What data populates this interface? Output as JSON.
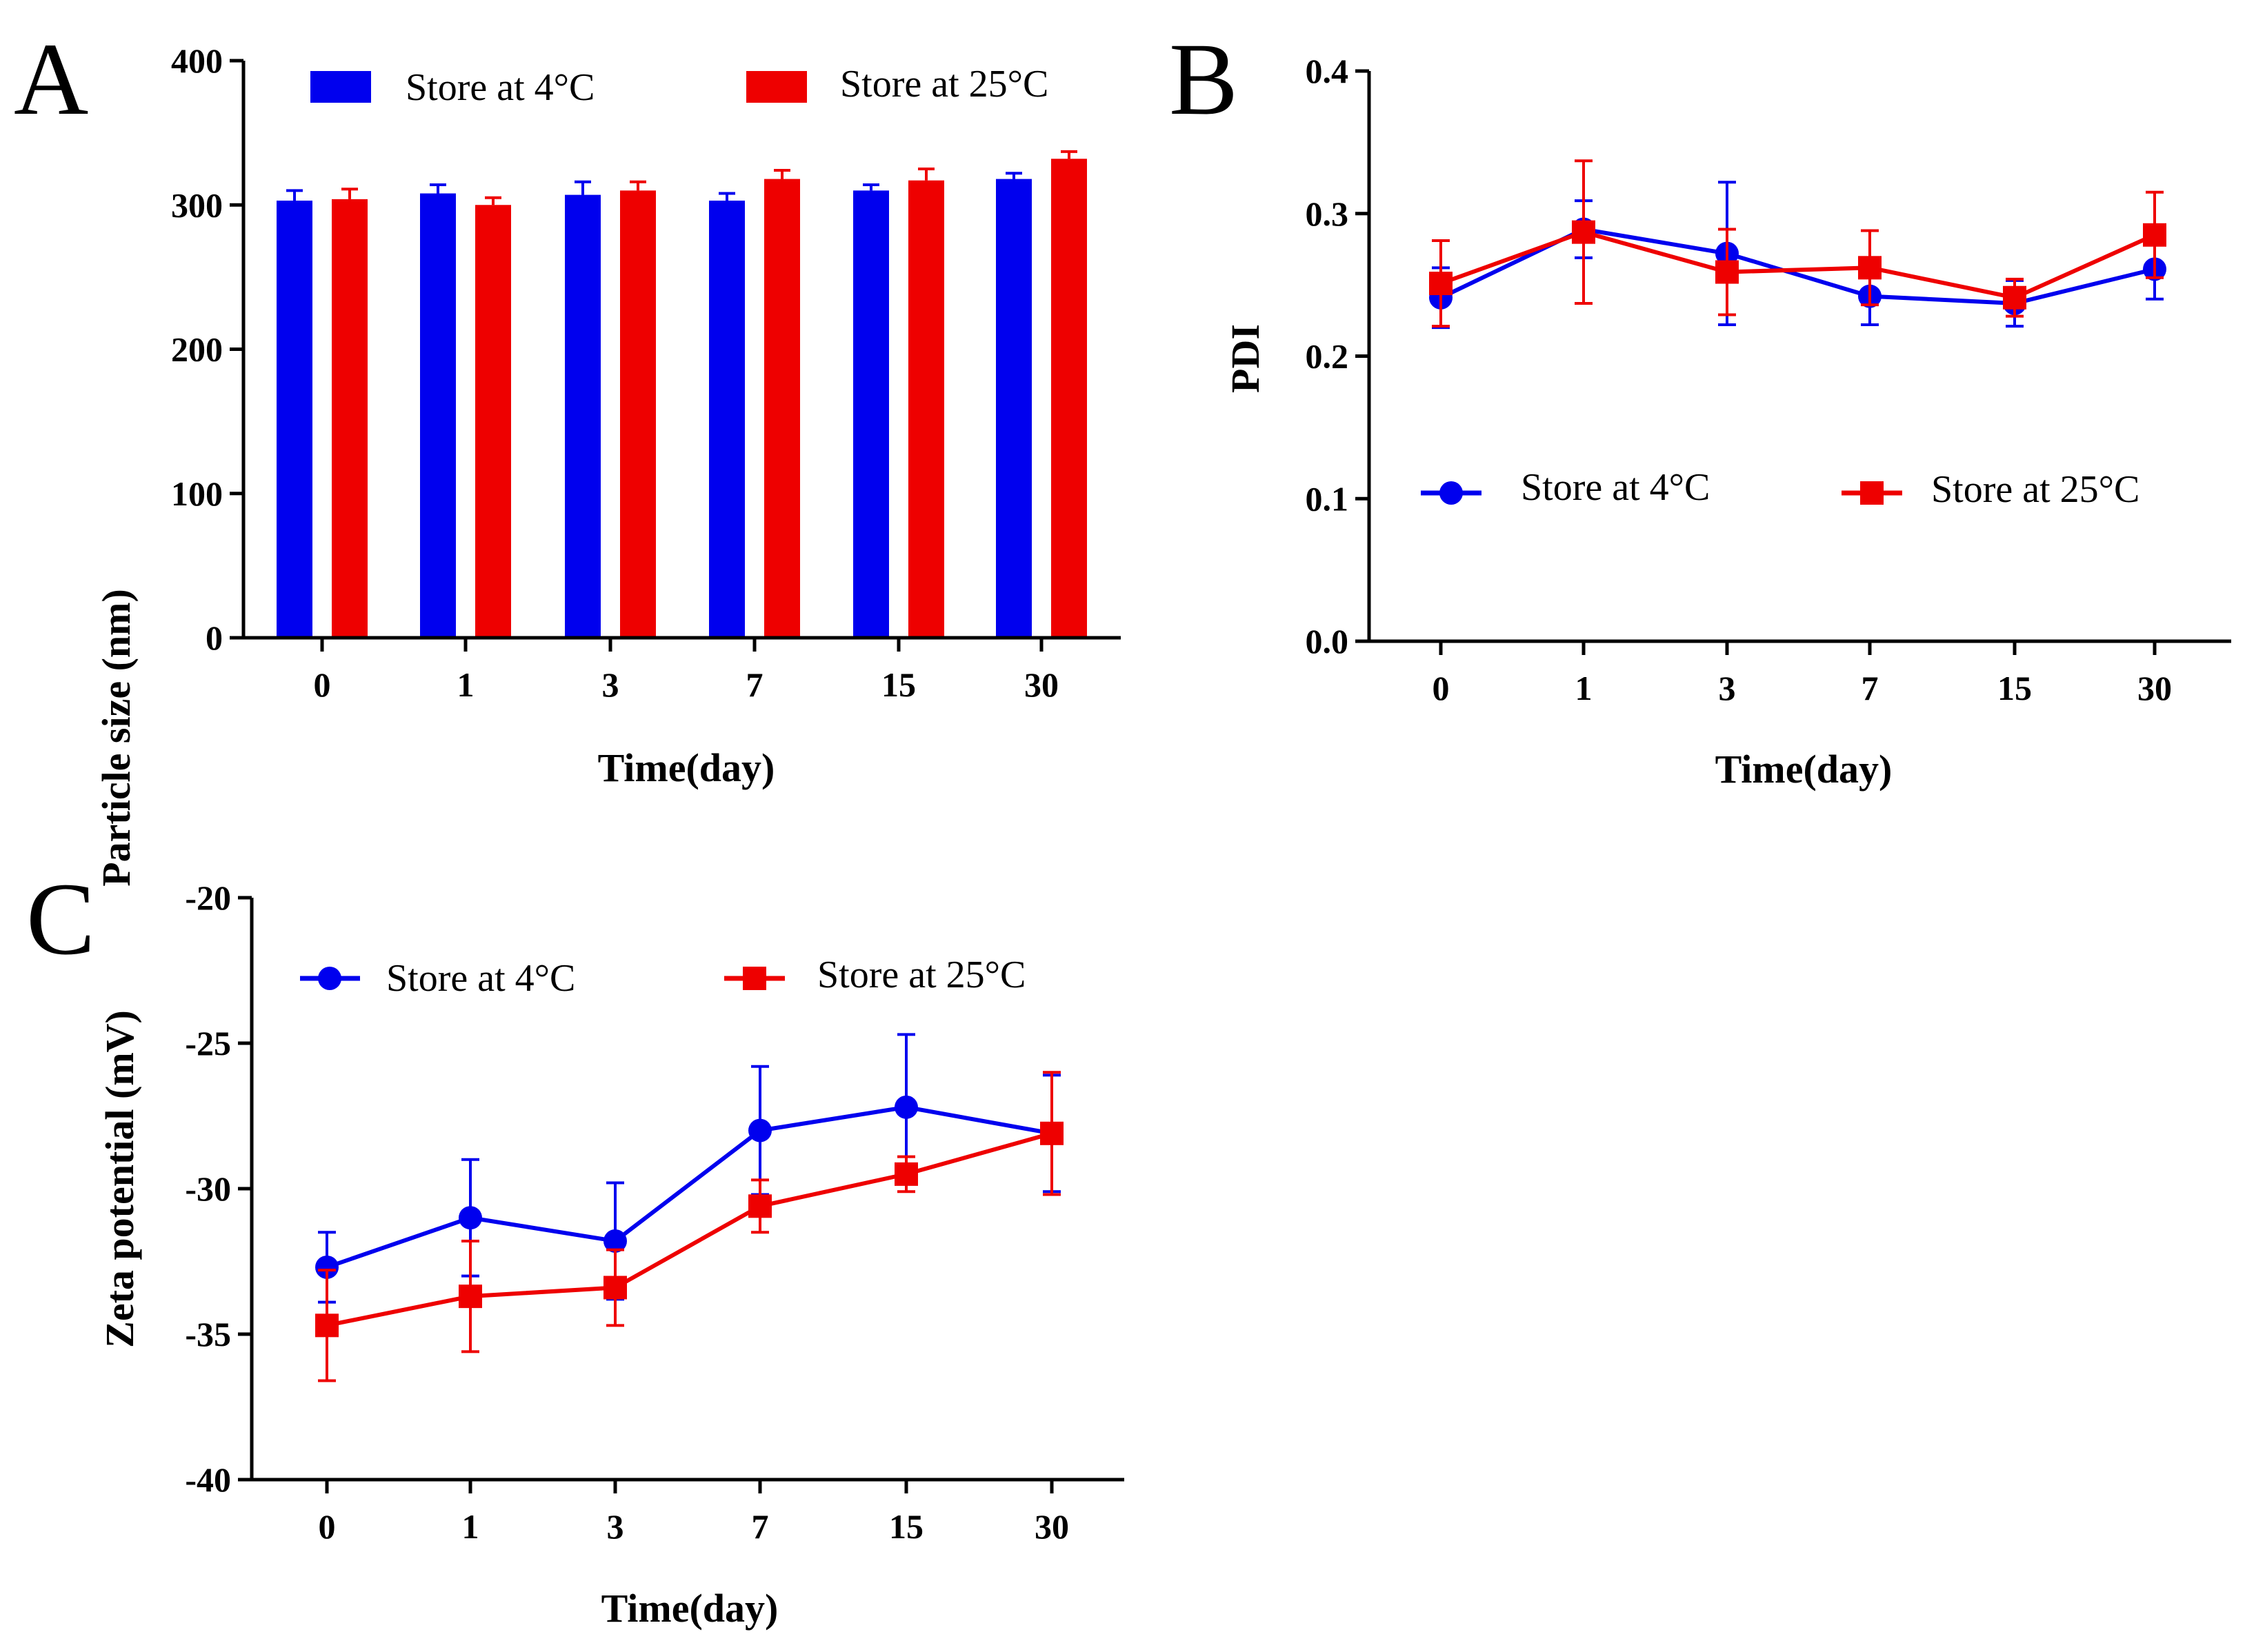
{
  "colors": {
    "series_4c": "#0000ee",
    "series_25c": "#ee0000",
    "axis": "#000000"
  },
  "legend": {
    "s1": "Store at 4°C",
    "s2": "Store at 25°C"
  },
  "chart_data": [
    {
      "panel": "A",
      "type": "bar",
      "title": "",
      "xlabel": "Time(day)",
      "ylabel": "Particle size (nm)",
      "categories": [
        "0",
        "1",
        "3",
        "7",
        "15",
        "30"
      ],
      "ylim": [
        0,
        400
      ],
      "yticks": [
        0,
        100,
        200,
        300,
        400
      ],
      "series": [
        {
          "name": "Store at 4°C",
          "color": "#0000ee",
          "values": [
            303,
            308,
            307,
            303,
            310,
            318
          ],
          "errors": [
            7,
            6,
            9,
            5,
            4,
            4
          ]
        },
        {
          "name": "Store at 25°C",
          "color": "#ee0000",
          "values": [
            304,
            300,
            310,
            318,
            317,
            332
          ],
          "errors": [
            7,
            5,
            6,
            6,
            8,
            5
          ]
        }
      ],
      "legend_position": "top"
    },
    {
      "panel": "B",
      "type": "line",
      "title": "",
      "xlabel": "Time(day)",
      "ylabel": "PDI",
      "categories": [
        "0",
        "1",
        "3",
        "7",
        "15",
        "30"
      ],
      "ylim": [
        0.0,
        0.4
      ],
      "yticks": [
        0.0,
        0.1,
        0.2,
        0.3,
        0.4
      ],
      "ytick_labels": [
        "0.0",
        "0.1",
        "0.2",
        "0.3",
        "0.4"
      ],
      "series": [
        {
          "name": "Store at 4°C",
          "color": "#0000ee",
          "marker": "circle",
          "values": [
            0.241,
            0.289,
            0.272,
            0.242,
            0.237,
            0.261
          ],
          "errors": [
            0.021,
            0.02,
            0.05,
            0.02,
            0.016,
            0.021
          ]
        },
        {
          "name": "Store at 25°C",
          "color": "#ee0000",
          "marker": "square",
          "values": [
            0.251,
            0.287,
            0.259,
            0.262,
            0.241,
            0.285
          ],
          "errors": [
            0.03,
            0.05,
            0.03,
            0.026,
            0.013,
            0.03
          ]
        }
      ],
      "legend_position": "middle"
    },
    {
      "panel": "C",
      "type": "line",
      "title": "",
      "xlabel": "Time(day)",
      "ylabel": "Zeta potential (mV)",
      "categories": [
        "0",
        "1",
        "3",
        "7",
        "15",
        "30"
      ],
      "ylim": [
        -40,
        -20
      ],
      "yticks": [
        -40,
        -35,
        -30,
        -25,
        -20
      ],
      "series": [
        {
          "name": "Store at 4°C",
          "color": "#0000ee",
          "marker": "circle",
          "values": [
            -32.7,
            -31.0,
            -31.8,
            -28.0,
            -27.2,
            -28.1
          ],
          "errors": [
            1.2,
            2.0,
            2.0,
            2.2,
            2.5,
            2.0
          ]
        },
        {
          "name": "Store at 25°C",
          "color": "#ee0000",
          "marker": "square",
          "values": [
            -34.7,
            -33.7,
            -33.4,
            -30.6,
            -29.5,
            -28.1
          ],
          "errors": [
            1.9,
            1.9,
            1.3,
            0.9,
            0.6,
            2.1
          ]
        }
      ],
      "legend_position": "top"
    }
  ]
}
